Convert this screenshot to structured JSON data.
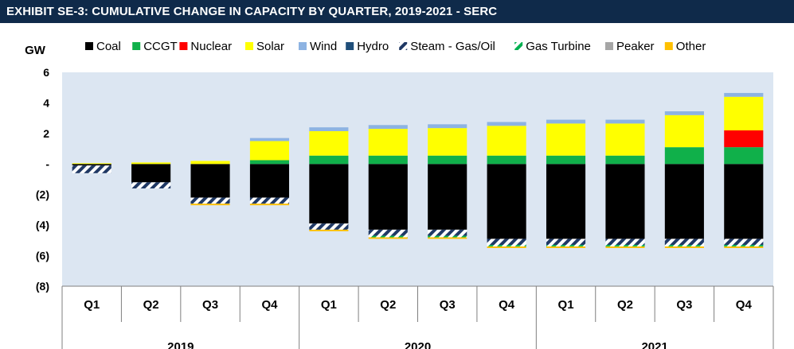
{
  "title": "EXHIBIT SE-3: CUMULATIVE CHANGE IN CAPACITY BY QUARTER,  2019-2021 - SERC",
  "chart_data": {
    "type": "bar",
    "stacked": true,
    "title": "EXHIBIT SE-3: CUMULATIVE CHANGE IN CAPACITY BY QUARTER,  2019-2021 - SERC",
    "ylabel": "GW",
    "ylim": [
      -8,
      6
    ],
    "yticks": [
      6,
      4,
      2,
      0,
      -2,
      -4,
      -6,
      -8
    ],
    "ytick_labels": [
      "6",
      "4",
      "2",
      "-",
      "(2)",
      "(4)",
      "(6)",
      "(8)"
    ],
    "grid": false,
    "legend_position": "top",
    "categories": [
      "Q1",
      "Q2",
      "Q3",
      "Q4",
      "Q1",
      "Q2",
      "Q3",
      "Q4",
      "Q1",
      "Q2",
      "Q3",
      "Q4"
    ],
    "groups": [
      {
        "label": "2019",
        "span": [
          0,
          3
        ]
      },
      {
        "label": "2020",
        "span": [
          4,
          7
        ]
      },
      {
        "label": "2021",
        "span": [
          8,
          11
        ]
      }
    ],
    "series": [
      {
        "name": "Coal",
        "color": "#000000",
        "pattern": "solid",
        "values": [
          -0.1,
          -1.2,
          -2.2,
          -2.2,
          -3.9,
          -4.3,
          -4.3,
          -4.9,
          -4.9,
          -4.9,
          -4.9,
          -4.9
        ]
      },
      {
        "name": "CCGT",
        "color": "#10b04a",
        "pattern": "solid",
        "values": [
          0,
          0,
          0,
          0.25,
          0.55,
          0.55,
          0.55,
          0.55,
          0.55,
          0.55,
          1.1,
          1.1
        ]
      },
      {
        "name": "Nuclear",
        "color": "#ff0000",
        "pattern": "solid",
        "values": [
          0,
          0,
          0,
          0,
          0,
          0,
          0,
          0,
          0,
          0,
          0,
          1.1
        ]
      },
      {
        "name": "Solar",
        "color": "#ffff00",
        "pattern": "solid",
        "values": [
          0.05,
          0.1,
          0.2,
          1.25,
          1.6,
          1.75,
          1.8,
          1.95,
          2.1,
          2.1,
          2.1,
          2.2
        ]
      },
      {
        "name": "Wind",
        "color": "#8db3e2",
        "pattern": "solid",
        "values": [
          0,
          0,
          0,
          0.2,
          0.25,
          0.25,
          0.25,
          0.25,
          0.25,
          0.25,
          0.25,
          0.25
        ]
      },
      {
        "name": "Hydro",
        "color": "#1f4e79",
        "pattern": "solid",
        "values": [
          0,
          0,
          0,
          0,
          0,
          0,
          0,
          0,
          0,
          0,
          0,
          0
        ]
      },
      {
        "name": "Steam - Gas/Oil",
        "color": "#1f3864",
        "pattern": "hatch",
        "values": [
          -0.5,
          -0.4,
          -0.4,
          -0.4,
          -0.4,
          -0.4,
          -0.4,
          -0.4,
          -0.4,
          -0.4,
          -0.4,
          -0.4
        ]
      },
      {
        "name": "Gas Turbine",
        "color": "#00b050",
        "pattern": "hatch",
        "values": [
          0,
          0,
          0,
          0,
          0,
          -0.1,
          -0.1,
          -0.1,
          -0.1,
          -0.1,
          -0.1,
          -0.1
        ]
      },
      {
        "name": "Peaker",
        "color": "#a6a6a6",
        "pattern": "solid",
        "values": [
          0,
          0,
          0,
          0,
          0,
          0,
          0,
          0,
          0,
          0,
          0,
          0
        ]
      },
      {
        "name": "Other",
        "color": "#ffc000",
        "pattern": "solid",
        "values": [
          0,
          0,
          -0.1,
          -0.1,
          -0.1,
          -0.1,
          -0.1,
          -0.1,
          -0.1,
          -0.1,
          -0.1,
          -0.1
        ]
      }
    ]
  },
  "colors": {
    "title_bar": "#0f2a4a",
    "plot_background": "#dce6f2",
    "axis_line": "#7f7f7f"
  }
}
